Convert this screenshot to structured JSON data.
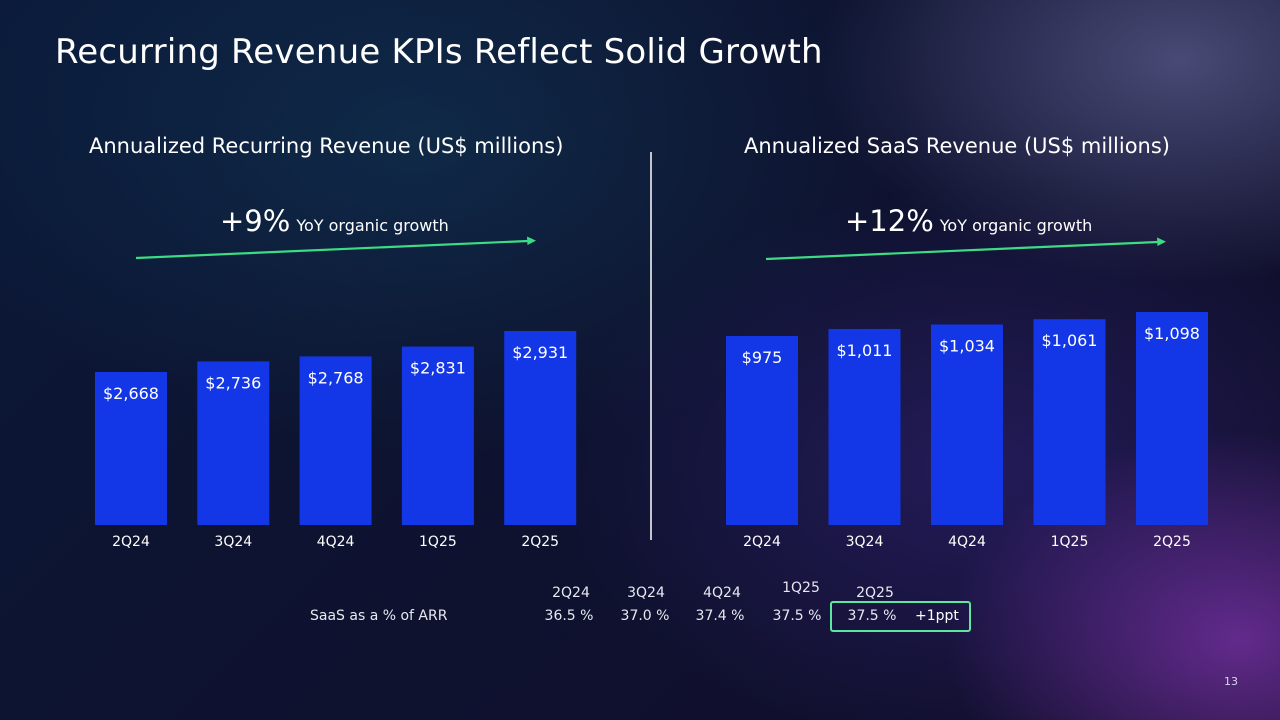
{
  "title": "Recurring Revenue KPIs Reflect Solid Growth",
  "colors": {
    "bar": "#1337e6",
    "arrow": "#3ddc84",
    "highlight": "#5ee6a0"
  },
  "chart_data": [
    {
      "type": "bar",
      "title": "Annualized Recurring Revenue (US$ millions)",
      "categories": [
        "2Q24",
        "3Q24",
        "4Q24",
        "1Q25",
        "2Q25"
      ],
      "values": [
        2668,
        2736,
        2768,
        2831,
        2931
      ],
      "labels": [
        "$2,668",
        "$2,736",
        "$2,768",
        "$2,831",
        "$2,931"
      ],
      "annotation": {
        "value": "+9%",
        "text": "YoY organic growth"
      },
      "xlabel": "",
      "ylabel": "",
      "grid": false
    },
    {
      "type": "bar",
      "title": "Annualized SaaS Revenue (US$ millions)",
      "categories": [
        "2Q24",
        "3Q24",
        "4Q24",
        "1Q25",
        "2Q25"
      ],
      "values": [
        975,
        1011,
        1034,
        1061,
        1098
      ],
      "labels": [
        "$975",
        "$1,011",
        "$1,034",
        "$1,061",
        "$1,098"
      ],
      "annotation": {
        "value": "+12%",
        "text": "YoY organic growth"
      },
      "xlabel": "",
      "ylabel": "",
      "grid": false
    }
  ],
  "saas_table": {
    "row_label": "SaaS as a % of ARR",
    "headers": [
      "2Q24",
      "3Q24",
      "4Q24",
      "1Q25",
      "2Q25"
    ],
    "values": [
      "36.5 %",
      "37.0 %",
      "37.4 %",
      "37.5 %",
      "37.5 %"
    ],
    "change": "+1ppt"
  },
  "page_number": "13"
}
